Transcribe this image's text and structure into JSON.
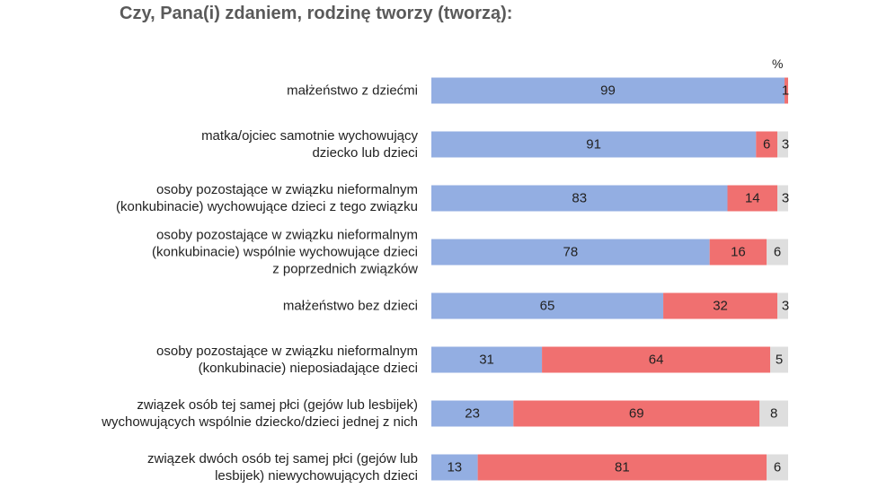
{
  "question": "Czy, Pana(i) zdaniem, rodzinę tworzy (tworzą):",
  "unit": "%",
  "colors": {
    "yes": "#93aee2",
    "no": "#f07070",
    "dont_know": "#dedede"
  },
  "chart_data": {
    "type": "bar",
    "orientation": "horizontal",
    "stacked": true,
    "title": "Czy, Pana(i) zdaniem, rodzinę tworzy (tworzą):",
    "unit": "%",
    "xlim": [
      0,
      100
    ],
    "categories": [
      [
        "małżeństwo z dziećmi"
      ],
      [
        "matka/ojciec samotnie wychowujący",
        "dziecko lub dzieci"
      ],
      [
        "osoby pozostające w związku nieformalnym",
        "(konkubinacie) wychowujące dzieci z tego związku"
      ],
      [
        "osoby pozostające w związku nieformalnym",
        "(konkubinacie) wspólnie wychowujące dzieci",
        "z poprzednich związków"
      ],
      [
        "małżeństwo bez dzieci"
      ],
      [
        "osoby pozostające w związku nieformalnym",
        "(konkubinacie) nieposiadające dzieci"
      ],
      [
        "związek osób tej samej płci (gejów lub lesbijek)",
        "wychowujących wspólnie dziecko/dzieci jednej z nich"
      ],
      [
        "związek dwóch osób tej samej płci (gejów lub",
        "lesbijek) niewychowujących dzieci"
      ]
    ],
    "series": [
      {
        "values": [
          99,
          91,
          83,
          78,
          65,
          31,
          23,
          13
        ]
      },
      {
        "values": [
          1,
          6,
          14,
          16,
          32,
          64,
          69,
          81
        ]
      },
      {
        "values": [
          0,
          3,
          3,
          6,
          3,
          5,
          8,
          6
        ]
      }
    ]
  }
}
